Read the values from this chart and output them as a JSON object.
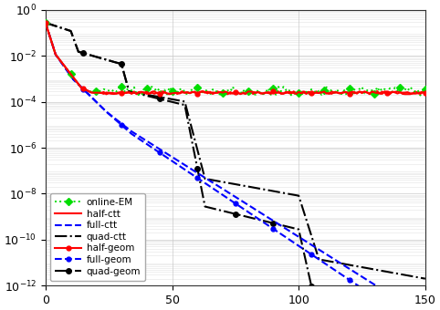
{
  "xlim": [
    0,
    150
  ],
  "ylim_log": [
    -12,
    0
  ],
  "xticks": [
    0,
    50,
    100,
    150
  ],
  "yticks_exp": [
    0,
    -2,
    -4,
    -6,
    -8,
    -10,
    -12
  ],
  "background_color": "#ffffff",
  "grid_color": "#c8c8c8",
  "online_em": {
    "label": "online-EM",
    "color": "#00dd00",
    "linestyle": "dotted",
    "linewidth": 1.4,
    "marker": "D",
    "markersize": 4.5,
    "markevery": 10
  },
  "half_ctt": {
    "label": "half-ctt",
    "color": "#ff0000",
    "linestyle": "solid",
    "linewidth": 1.5
  },
  "full_ctt": {
    "label": "full-ctt",
    "color": "#0000ff",
    "linestyle": "dashed",
    "linewidth": 1.5,
    "dashes": [
      6,
      3
    ]
  },
  "quad_ctt": {
    "label": "quad-ctt",
    "color": "#000000",
    "linestyle": "dashdot",
    "linewidth": 1.5
  },
  "half_geom": {
    "label": "half-geom",
    "color": "#ff0000",
    "linestyle": "solid",
    "linewidth": 1.5,
    "marker": "o",
    "markersize": 3.5,
    "markevery": 15
  },
  "full_geom": {
    "label": "full-geom",
    "color": "#0000ff",
    "linestyle": "dashed",
    "linewidth": 1.5,
    "marker": "o",
    "markersize": 3.5,
    "markevery": 15,
    "dashes": [
      6,
      3
    ]
  },
  "quad_geom": {
    "label": "quad-geom",
    "color": "#000000",
    "linestyle": "dashdot",
    "linewidth": 1.5,
    "marker": "o",
    "markersize": 4,
    "markevery": 15
  }
}
